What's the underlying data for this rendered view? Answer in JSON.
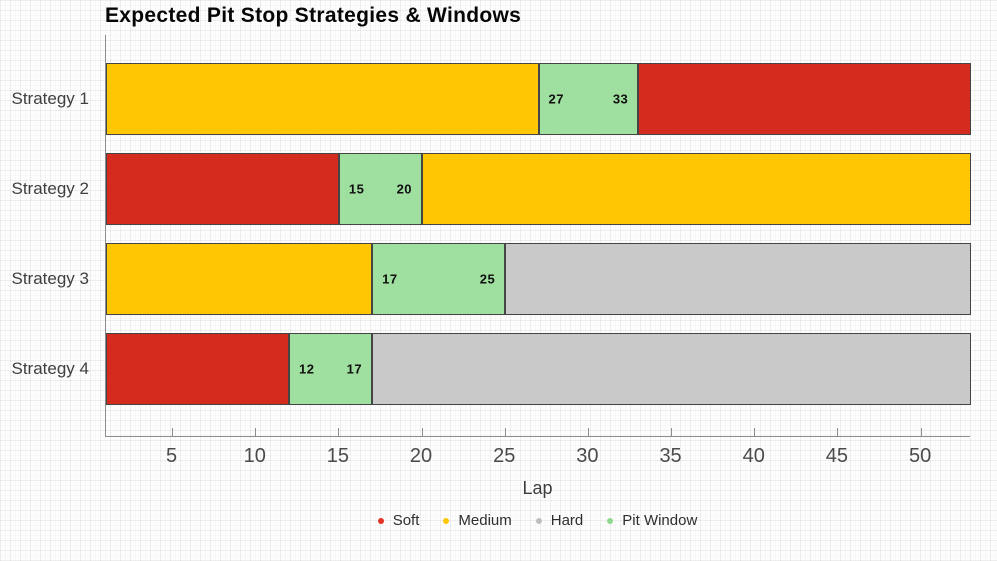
{
  "title": "Expected Pit Stop Strategies & Windows",
  "colors": {
    "soft": "#d42b1e",
    "medium": "#ffc603",
    "hard": "#c9c9c9",
    "pit_window": "#9fdf9f",
    "segment_border": "#454545",
    "axis": "#8d8d8d"
  },
  "chart_data": {
    "type": "bar",
    "orientation": "horizontal",
    "title": "Expected Pit Stop Strategies & Windows",
    "xlabel": "Lap",
    "xlim": [
      1,
      53
    ],
    "xticks": [
      5,
      10,
      15,
      20,
      25,
      30,
      35,
      40,
      45,
      50
    ],
    "grid": "plaid background texture",
    "legend_position": "bottom",
    "categories": [
      "Strategy 1",
      "Strategy 2",
      "Strategy 3",
      "Strategy 4"
    ],
    "bars": [
      {
        "category": "Strategy 1",
        "segments": [
          {
            "compound": "Medium",
            "from": 1,
            "to": 27
          },
          {
            "compound": "Pit Window",
            "from": 27,
            "to": 33,
            "labels": [
              "27",
              "33"
            ]
          },
          {
            "compound": "Soft",
            "from": 33,
            "to": 53
          }
        ]
      },
      {
        "category": "Strategy 2",
        "segments": [
          {
            "compound": "Soft",
            "from": 1,
            "to": 15
          },
          {
            "compound": "Pit Window",
            "from": 15,
            "to": 20,
            "labels": [
              "15",
              "20"
            ]
          },
          {
            "compound": "Medium",
            "from": 20,
            "to": 53
          }
        ]
      },
      {
        "category": "Strategy 3",
        "segments": [
          {
            "compound": "Medium",
            "from": 1,
            "to": 17
          },
          {
            "compound": "Pit Window",
            "from": 17,
            "to": 25,
            "labels": [
              "17",
              "25"
            ]
          },
          {
            "compound": "Hard",
            "from": 25,
            "to": 53
          }
        ]
      },
      {
        "category": "Strategy 4",
        "segments": [
          {
            "compound": "Soft",
            "from": 1,
            "to": 12
          },
          {
            "compound": "Pit Window",
            "from": 12,
            "to": 17,
            "labels": [
              "12",
              "17"
            ]
          },
          {
            "compound": "Hard",
            "from": 17,
            "to": 53
          }
        ]
      }
    ],
    "compound_colors": {
      "Soft": "#d42b1e",
      "Medium": "#ffc603",
      "Hard": "#c9c9c9",
      "Pit Window": "#9fdf9f"
    },
    "legend": [
      {
        "label": "Soft",
        "color": "#e23527"
      },
      {
        "label": "Medium",
        "color": "#ffc603"
      },
      {
        "label": "Hard",
        "color": "#bdbdbd"
      },
      {
        "label": "Pit Window",
        "color": "#8fd98f"
      }
    ]
  }
}
